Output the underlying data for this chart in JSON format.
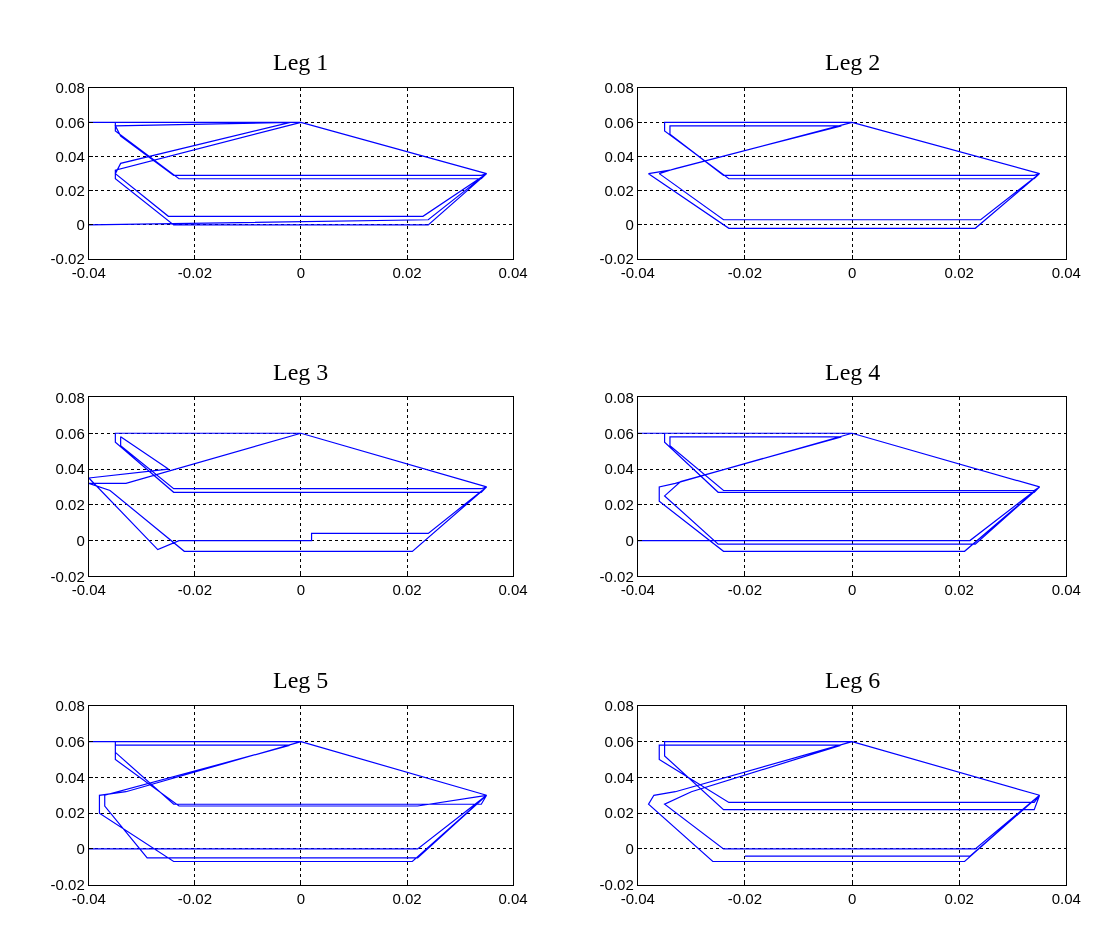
{
  "chart_data": [
    {
      "type": "line",
      "title": "Leg 1",
      "xlim": [
        -0.04,
        0.04
      ],
      "ylim": [
        -0.02,
        0.08
      ],
      "xticks": [
        -0.04,
        -0.02,
        0,
        0.02,
        0.04
      ],
      "yticks": [
        -0.02,
        0,
        0.02,
        0.04,
        0.06,
        0.08
      ],
      "grid": true,
      "marker": "none",
      "line_style": "solid",
      "series": [
        {
          "color": "#0000ff",
          "x": [
            -0.04,
            0,
            0.035,
            0.024,
            -0.024,
            -0.035,
            -0.035,
            0,
            -0.035,
            -0.035,
            -0.023,
            0.034,
            0.035,
            0.023,
            -0.025,
            -0.035,
            -0.034,
            -0.002,
            -0.035,
            -0.034,
            -0.024,
            0.034,
            0.035,
            0.024,
            -0.04
          ],
          "values": [
            0.06,
            0.06,
            0.03,
            0.0,
            0.0,
            0.027,
            0.032,
            0.06,
            0.06,
            0.055,
            0.027,
            0.027,
            0.03,
            0.005,
            0.005,
            0.03,
            0.036,
            0.06,
            0.058,
            0.052,
            0.029,
            0.029,
            0.03,
            0.003,
            0.0
          ]
        }
      ]
    },
    {
      "type": "line",
      "title": "Leg 2",
      "xlim": [
        -0.04,
        0.04
      ],
      "ylim": [
        -0.02,
        0.08
      ],
      "xticks": [
        -0.04,
        -0.02,
        0,
        0.02,
        0.04
      ],
      "yticks": [
        -0.02,
        0,
        0.02,
        0.04,
        0.06,
        0.08
      ],
      "grid": true,
      "marker": "none",
      "line_style": "solid",
      "series": [
        {
          "color": "#0000ff",
          "x": [
            -0.035,
            0,
            0.035,
            0.023,
            -0.023,
            -0.038,
            -0.034,
            0,
            -0.035,
            -0.035,
            -0.023,
            0.034,
            0.035,
            0.024,
            -0.024,
            -0.036,
            -0.033,
            -0.002,
            -0.034,
            -0.034,
            -0.024,
            0.034,
            0.035
          ],
          "values": [
            0.06,
            0.06,
            0.03,
            -0.002,
            -0.002,
            0.03,
            0.032,
            0.06,
            0.06,
            0.055,
            0.027,
            0.027,
            0.03,
            0.003,
            0.003,
            0.03,
            0.033,
            0.058,
            0.058,
            0.053,
            0.029,
            0.029,
            0.03
          ]
        }
      ]
    },
    {
      "type": "line",
      "title": "Leg 3",
      "xlim": [
        -0.04,
        0.04
      ],
      "ylim": [
        -0.02,
        0.08
      ],
      "xticks": [
        -0.04,
        -0.02,
        0,
        0.02,
        0.04
      ],
      "yticks": [
        -0.02,
        0,
        0.02,
        0.04,
        0.06,
        0.08
      ],
      "grid": true,
      "marker": "none",
      "line_style": "solid",
      "series": [
        {
          "color": "#0000ff",
          "x": [
            -0.035,
            0,
            0.035,
            0.021,
            -0.022,
            -0.036,
            -0.04,
            -0.033,
            0,
            -0.035,
            -0.035,
            -0.024,
            0.034,
            0.035,
            0.024,
            0.002,
            0.002,
            -0.023,
            -0.027,
            -0.04,
            -0.025,
            -0.034,
            -0.034,
            -0.024,
            0.034,
            0.035
          ],
          "values": [
            0.06,
            0.06,
            0.03,
            -0.006,
            -0.006,
            0.028,
            0.032,
            0.032,
            0.06,
            0.06,
            0.055,
            0.027,
            0.027,
            0.03,
            0.004,
            0.004,
            0.0,
            0.0,
            -0.005,
            0.035,
            0.04,
            0.058,
            0.053,
            0.029,
            0.029,
            0.03
          ]
        }
      ]
    },
    {
      "type": "line",
      "title": "Leg 4",
      "xlim": [
        -0.04,
        0.04
      ],
      "ylim": [
        -0.02,
        0.08
      ],
      "xticks": [
        -0.04,
        -0.02,
        0,
        0.02,
        0.04
      ],
      "yticks": [
        -0.02,
        0,
        0.02,
        0.04,
        0.06,
        0.08
      ],
      "grid": true,
      "marker": "none",
      "line_style": "solid",
      "series": [
        {
          "color": "#0000ff",
          "x": [
            -0.04,
            0,
            0.035,
            0.021,
            -0.024,
            -0.036,
            -0.036,
            -0.033,
            0,
            -0.035,
            -0.035,
            -0.025,
            0.034,
            0.035,
            0.023,
            -0.025,
            -0.035,
            -0.032,
            -0.002,
            -0.034,
            -0.034,
            -0.024,
            0.034,
            0.035,
            0.022,
            -0.04
          ],
          "values": [
            0.06,
            0.06,
            0.03,
            -0.006,
            -0.006,
            0.022,
            0.03,
            0.032,
            0.06,
            0.06,
            0.055,
            0.027,
            0.027,
            0.03,
            -0.002,
            -0.002,
            0.025,
            0.033,
            0.058,
            0.058,
            0.053,
            0.028,
            0.028,
            0.03,
            0.0,
            0.0
          ]
        }
      ]
    },
    {
      "type": "line",
      "title": "Leg 5",
      "xlim": [
        -0.04,
        0.04
      ],
      "ylim": [
        -0.02,
        0.08
      ],
      "xticks": [
        -0.04,
        -0.02,
        0,
        0.02,
        0.04
      ],
      "yticks": [
        -0.02,
        0,
        0.02,
        0.04,
        0.06,
        0.08
      ],
      "grid": true,
      "marker": "none",
      "line_style": "solid",
      "series": [
        {
          "color": "#0000ff",
          "x": [
            -0.04,
            0,
            0.035,
            0.021,
            -0.024,
            -0.038,
            -0.038,
            -0.033,
            0,
            -0.035,
            -0.035,
            -0.024,
            0.034,
            0.035,
            0.022,
            -0.029,
            -0.037,
            -0.037,
            -0.002,
            -0.035,
            -0.035,
            -0.023,
            0.022,
            0.035,
            0.022,
            -0.04
          ],
          "values": [
            0.06,
            0.06,
            0.03,
            -0.007,
            -0.007,
            0.02,
            0.03,
            0.032,
            0.06,
            0.06,
            0.054,
            0.025,
            0.025,
            0.03,
            -0.005,
            -0.005,
            0.024,
            0.03,
            0.058,
            0.058,
            0.05,
            0.024,
            0.024,
            0.03,
            0.0,
            0.0
          ]
        }
      ]
    },
    {
      "type": "line",
      "title": "Leg 6",
      "xlim": [
        -0.04,
        0.04
      ],
      "ylim": [
        -0.02,
        0.08
      ],
      "xticks": [
        -0.04,
        -0.02,
        0,
        0.02,
        0.04
      ],
      "yticks": [
        -0.02,
        0,
        0.02,
        0.04,
        0.06,
        0.08
      ],
      "grid": true,
      "marker": "none",
      "line_style": "solid",
      "series": [
        {
          "color": "#0000ff",
          "x": [
            -0.035,
            0,
            0.035,
            0.021,
            -0.026,
            -0.038,
            -0.037,
            -0.033,
            0,
            -0.035,
            -0.035,
            -0.024,
            0.034,
            0.035,
            0.023,
            -0.024,
            -0.035,
            -0.03,
            -0.002,
            -0.036,
            -0.036,
            -0.023,
            0.034,
            0.035,
            0.022,
            -0.02
          ],
          "values": [
            0.06,
            0.06,
            0.03,
            -0.007,
            -0.007,
            0.025,
            0.03,
            0.032,
            0.06,
            0.06,
            0.052,
            0.022,
            0.022,
            0.03,
            0.0,
            0.0,
            0.025,
            0.032,
            0.058,
            0.058,
            0.05,
            0.026,
            0.026,
            0.03,
            -0.004,
            -0.004
          ]
        }
      ]
    }
  ]
}
